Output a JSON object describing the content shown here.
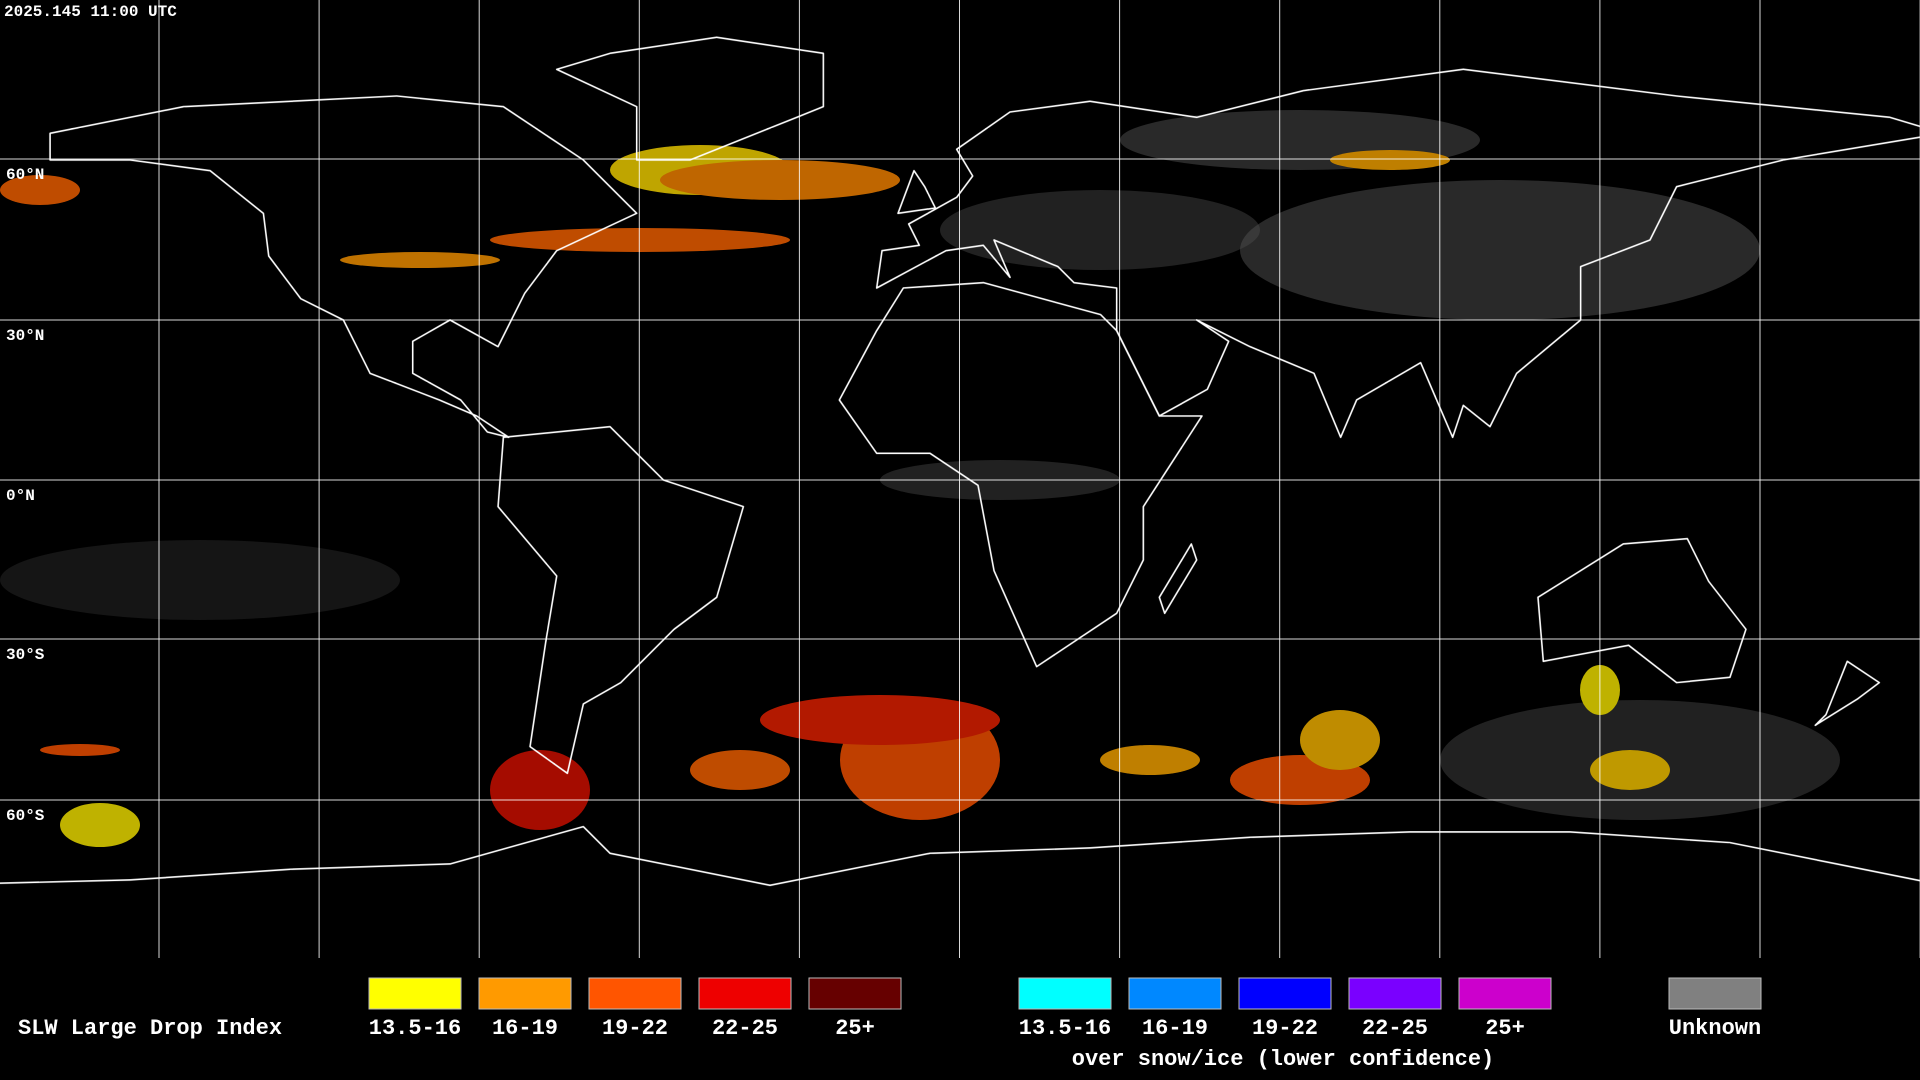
{
  "header": {
    "timestamp": "2025.145 11:00 UTC"
  },
  "map": {
    "lat_labels": [
      "60°N",
      "30°N",
      "0°N",
      "30°S",
      "60°S"
    ]
  },
  "legend": {
    "title": "SLW Large Drop Index",
    "items": [
      {
        "label": "13.5-16",
        "color": "#ffff00"
      },
      {
        "label": "16-19",
        "color": "#ff9a00"
      },
      {
        "label": "19-22",
        "color": "#ff5500"
      },
      {
        "label": "22-25",
        "color": "#ee0000"
      },
      {
        "label": "25+",
        "color": "#660000"
      }
    ],
    "snow_ice_items": [
      {
        "label": "13.5-16",
        "color": "#00ffff"
      },
      {
        "label": "16-19",
        "color": "#0088ff"
      },
      {
        "label": "19-22",
        "color": "#0000ff"
      },
      {
        "label": "22-25",
        "color": "#7a00ff"
      },
      {
        "label": "25+",
        "color": "#cc00cc"
      }
    ],
    "snow_ice_caption": "over snow/ice (lower confidence)",
    "unknown": {
      "label": "Unknown",
      "color": "#808080"
    }
  }
}
